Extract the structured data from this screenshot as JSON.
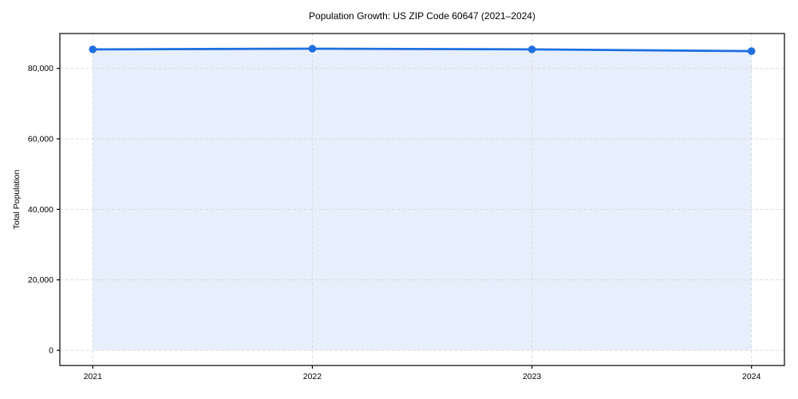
{
  "chart_data": {
    "type": "line",
    "title": "Population Growth: US ZIP Code 60647 (2021–2024)",
    "xlabel": "",
    "ylabel": "Total Population",
    "x": [
      2021,
      2022,
      2023,
      2024
    ],
    "x_tick_labels": [
      "2021",
      "2022",
      "2023",
      "2024"
    ],
    "series": [
      {
        "name": "Total Population",
        "values": [
          85400,
          85600,
          85400,
          84900
        ]
      }
    ],
    "y_ticks": [
      0,
      20000,
      40000,
      60000,
      80000
    ],
    "y_tick_labels": [
      "0",
      "20,000",
      "40,000",
      "60,000",
      "80,000"
    ],
    "xlim": [
      2020.85,
      2024.15
    ],
    "ylim": [
      -4300,
      89900
    ],
    "grid": true,
    "grid_style": "dashed",
    "legend": "none",
    "marker": "circle",
    "area_fill": true,
    "area_fill_baseline": 0,
    "colors": {
      "line": "#1f6fe0",
      "marker": "#1f6fe0",
      "fill": "#e7effc",
      "grid": "#dcdcdc",
      "axis": "#000000",
      "background": "#ffffff",
      "text": "#000000"
    }
  }
}
